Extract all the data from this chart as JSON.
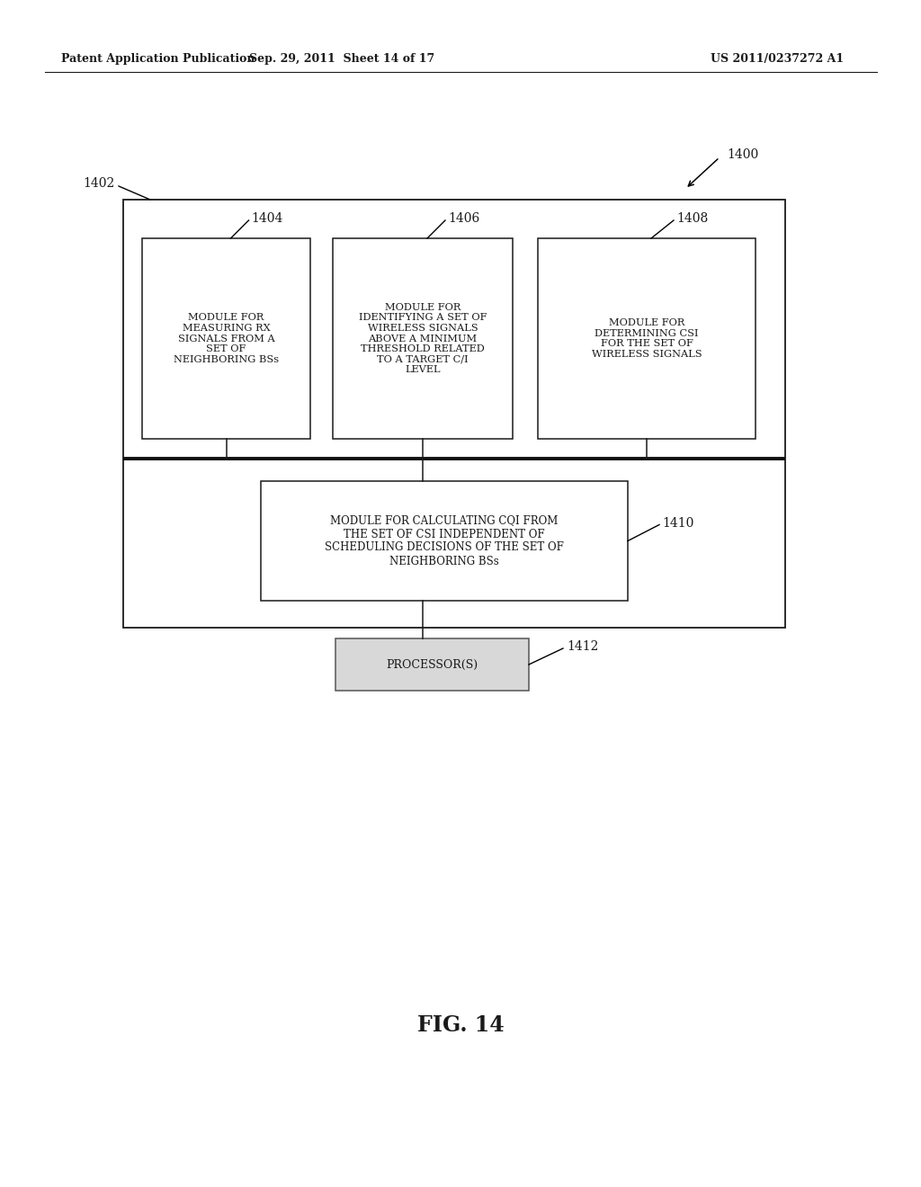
{
  "bg_color": "#ffffff",
  "header_left": "Patent Application Publication",
  "header_mid": "Sep. 29, 2011  Sheet 14 of 17",
  "header_right": "US 2011/0237272 A1",
  "fig_label": "FIG. 14",
  "label_1400": "1400",
  "label_1402": "1402",
  "label_1404": "1404",
  "label_1406": "1406",
  "label_1408": "1408",
  "label_1410": "1410",
  "label_1412": "1412",
  "box1404_text": "MODULE FOR\nMEASURING RX\nSIGNALS FROM A\nSET OF\nNEIGHBORING BSs",
  "box1406_text": "MODULE FOR\nIDENTIFYING A SET OF\nWIRELESS SIGNALS\nABOVE A MINIMUM\nTHRESHOLD RELATED\nTO A TARGET C/I\nLEVEL",
  "box1408_text": "MODULE FOR\nDETERMINING CSI\nFOR THE SET OF\nWIRELESS SIGNALS",
  "box1410_text": "MODULE FOR CALCULATING CQI FROM\nTHE SET OF CSI INDEPENDENT OF\nSCHEDULING DECISIONS OF THE SET OF\nNEIGHBORING BSs",
  "box1412_text": "PROCESSOR(S)"
}
